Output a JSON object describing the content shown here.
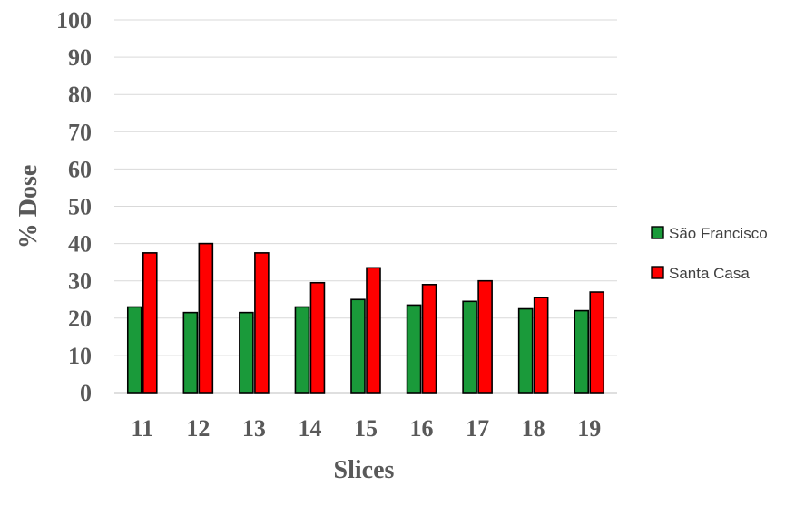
{
  "chart_data": {
    "type": "bar",
    "title": "",
    "xlabel": "Slices",
    "ylabel": "% Dose",
    "categories": [
      "11",
      "12",
      "13",
      "14",
      "15",
      "16",
      "17",
      "18",
      "19"
    ],
    "yticks": [
      "0",
      "10",
      "20",
      "30",
      "40",
      "50",
      "60",
      "70",
      "80",
      "90",
      "100"
    ],
    "ylim": [
      0,
      100
    ],
    "grid": true,
    "legend_position": "right",
    "series": [
      {
        "name": "São Francisco",
        "color": "#1a9a3a",
        "values": [
          23,
          21.5,
          21.5,
          23,
          25,
          23.5,
          24.5,
          22.5,
          22
        ]
      },
      {
        "name": "Santa Casa",
        "color": "#ff0000",
        "values": [
          37.5,
          40,
          37.5,
          29.5,
          33.5,
          29,
          30,
          25.5,
          27
        ]
      }
    ]
  }
}
